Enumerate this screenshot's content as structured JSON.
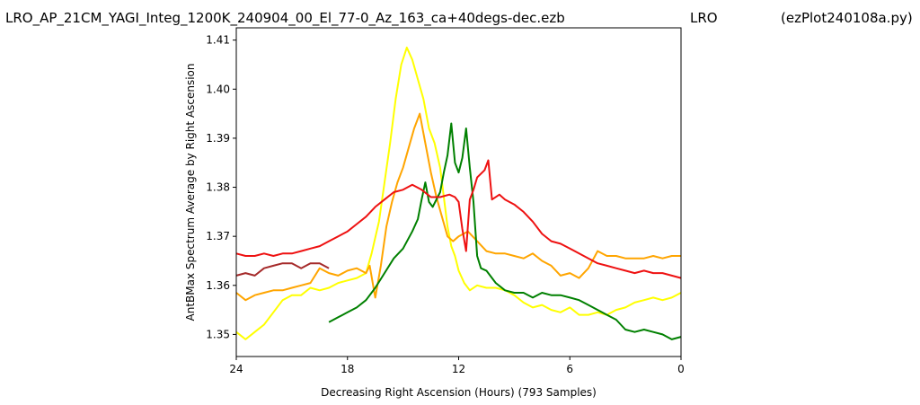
{
  "header": {
    "file_title": "LRO_AP_21CM_YAGI_Integ_1200K_240904_00_El_77-0_Az_163_ca+40degs-dec.ezb",
    "site": "LRO",
    "program": "(ezPlot240108a.py)"
  },
  "chart_data": {
    "type": "line",
    "xlabel": "Decreasing Right Ascension (Hours) (793 Samples)",
    "ylabel": "AntBMax Spectrum Average by Right Ascension",
    "xlim": [
      24,
      0
    ],
    "ylim": [
      1.3455,
      1.4125
    ],
    "x_ticks": [
      24,
      18,
      12,
      6,
      0
    ],
    "y_ticks": [
      1.35,
      1.36,
      1.37,
      1.38,
      1.39,
      1.4,
      1.41
    ],
    "y_tick_labels": [
      "1.35",
      "1.36",
      "1.37",
      "1.38",
      "1.39",
      "1.40",
      "1.41"
    ],
    "grid": false,
    "series": [
      {
        "color": "#ffff00",
        "points": [
          [
            24,
            1.3505
          ],
          [
            23.5,
            1.349
          ],
          [
            23,
            1.3505
          ],
          [
            22.5,
            1.352
          ],
          [
            22,
            1.3545
          ],
          [
            21.5,
            1.357
          ],
          [
            21,
            1.358
          ],
          [
            20.5,
            1.358
          ],
          [
            20,
            1.3595
          ],
          [
            19.5,
            1.359
          ],
          [
            19,
            1.3595
          ],
          [
            18.5,
            1.3605
          ],
          [
            18,
            1.361
          ],
          [
            17.5,
            1.3615
          ],
          [
            17,
            1.3625
          ],
          [
            16.7,
            1.3665
          ],
          [
            16.3,
            1.373
          ],
          [
            16,
            1.381
          ],
          [
            15.7,
            1.389
          ],
          [
            15.4,
            1.398
          ],
          [
            15.1,
            1.405
          ],
          [
            14.8,
            1.4085
          ],
          [
            14.5,
            1.406
          ],
          [
            14.2,
            1.402
          ],
          [
            13.9,
            1.398
          ],
          [
            13.6,
            1.392
          ],
          [
            13.3,
            1.389
          ],
          [
            13,
            1.384
          ],
          [
            12.8,
            1.378
          ],
          [
            12.6,
            1.372
          ],
          [
            12.4,
            1.368
          ],
          [
            12.2,
            1.366
          ],
          [
            12,
            1.363
          ],
          [
            11.7,
            1.3605
          ],
          [
            11.4,
            1.359
          ],
          [
            11,
            1.36
          ],
          [
            10.5,
            1.3595
          ],
          [
            10,
            1.3595
          ],
          [
            9.5,
            1.359
          ],
          [
            9,
            1.358
          ],
          [
            8.5,
            1.3565
          ],
          [
            8,
            1.3555
          ],
          [
            7.5,
            1.356
          ],
          [
            7,
            1.355
          ],
          [
            6.5,
            1.3545
          ],
          [
            6,
            1.3555
          ],
          [
            5.5,
            1.354
          ],
          [
            5,
            1.354
          ],
          [
            4.5,
            1.3545
          ],
          [
            4,
            1.354
          ],
          [
            3.5,
            1.355
          ],
          [
            3,
            1.3555
          ],
          [
            2.5,
            1.3565
          ],
          [
            2,
            1.357
          ],
          [
            1.5,
            1.3575
          ],
          [
            1,
            1.357
          ],
          [
            0.5,
            1.3575
          ],
          [
            0,
            1.3585
          ]
        ]
      },
      {
        "color": "#ffa500",
        "points": [
          [
            24,
            1.3585
          ],
          [
            23.5,
            1.357
          ],
          [
            23,
            1.358
          ],
          [
            22.5,
            1.3585
          ],
          [
            22,
            1.359
          ],
          [
            21.5,
            1.359
          ],
          [
            21,
            1.3595
          ],
          [
            20.5,
            1.36
          ],
          [
            20,
            1.3605
          ],
          [
            19.5,
            1.3635
          ],
          [
            19,
            1.3625
          ],
          [
            18.5,
            1.362
          ],
          [
            18,
            1.363
          ],
          [
            17.5,
            1.3635
          ],
          [
            17,
            1.3625
          ],
          [
            16.8,
            1.364
          ],
          [
            16.5,
            1.3575
          ],
          [
            16.2,
            1.364
          ],
          [
            15.9,
            1.372
          ],
          [
            15.6,
            1.377
          ],
          [
            15.3,
            1.381
          ],
          [
            15,
            1.384
          ],
          [
            14.7,
            1.388
          ],
          [
            14.4,
            1.392
          ],
          [
            14.1,
            1.395
          ],
          [
            13.8,
            1.389
          ],
          [
            13.5,
            1.383
          ],
          [
            13.2,
            1.378
          ],
          [
            12.9,
            1.374
          ],
          [
            12.6,
            1.37
          ],
          [
            12.3,
            1.369
          ],
          [
            12,
            1.37
          ],
          [
            11.5,
            1.371
          ],
          [
            11,
            1.369
          ],
          [
            10.5,
            1.367
          ],
          [
            10,
            1.3665
          ],
          [
            9.5,
            1.3665
          ],
          [
            9,
            1.366
          ],
          [
            8.5,
            1.3655
          ],
          [
            8,
            1.3665
          ],
          [
            7.5,
            1.365
          ],
          [
            7,
            1.364
          ],
          [
            6.5,
            1.362
          ],
          [
            6,
            1.3625
          ],
          [
            5.5,
            1.3615
          ],
          [
            5,
            1.3635
          ],
          [
            4.5,
            1.367
          ],
          [
            4,
            1.366
          ],
          [
            3.5,
            1.366
          ],
          [
            3,
            1.3655
          ],
          [
            2.5,
            1.3655
          ],
          [
            2,
            1.3655
          ],
          [
            1.5,
            1.366
          ],
          [
            1,
            1.3655
          ],
          [
            0.5,
            1.366
          ],
          [
            0,
            1.366
          ]
        ]
      },
      {
        "color": "#a52a2a",
        "points": [
          [
            24,
            1.362
          ],
          [
            23.5,
            1.3625
          ],
          [
            23,
            1.362
          ],
          [
            22.5,
            1.3635
          ],
          [
            22,
            1.364
          ],
          [
            21.5,
            1.3645
          ],
          [
            21,
            1.3645
          ],
          [
            20.5,
            1.3635
          ],
          [
            20,
            1.3645
          ],
          [
            19.5,
            1.3645
          ],
          [
            19,
            1.3635
          ]
        ]
      },
      {
        "color": "#008000",
        "points": [
          [
            19,
            1.3525
          ],
          [
            18.5,
            1.3535
          ],
          [
            18,
            1.3545
          ],
          [
            17.5,
            1.3555
          ],
          [
            17,
            1.357
          ],
          [
            16.5,
            1.3595
          ],
          [
            16,
            1.3625
          ],
          [
            15.5,
            1.3655
          ],
          [
            15,
            1.3675
          ],
          [
            14.5,
            1.371
          ],
          [
            14.2,
            1.3735
          ],
          [
            14,
            1.3775
          ],
          [
            13.8,
            1.381
          ],
          [
            13.6,
            1.377
          ],
          [
            13.4,
            1.376
          ],
          [
            13,
            1.379
          ],
          [
            12.8,
            1.383
          ],
          [
            12.6,
            1.3865
          ],
          [
            12.4,
            1.393
          ],
          [
            12.2,
            1.385
          ],
          [
            12,
            1.383
          ],
          [
            11.8,
            1.386
          ],
          [
            11.6,
            1.392
          ],
          [
            11.4,
            1.384
          ],
          [
            11.2,
            1.377
          ],
          [
            11,
            1.366
          ],
          [
            10.8,
            1.3635
          ],
          [
            10.5,
            1.363
          ],
          [
            10,
            1.3605
          ],
          [
            9.5,
            1.359
          ],
          [
            9,
            1.3585
          ],
          [
            8.5,
            1.3585
          ],
          [
            8,
            1.3575
          ],
          [
            7.5,
            1.3585
          ],
          [
            7,
            1.358
          ],
          [
            6.5,
            1.358
          ],
          [
            6,
            1.3575
          ],
          [
            5.5,
            1.357
          ],
          [
            5,
            1.356
          ],
          [
            4.5,
            1.355
          ],
          [
            4,
            1.354
          ],
          [
            3.5,
            1.353
          ],
          [
            3,
            1.351
          ],
          [
            2.5,
            1.3505
          ],
          [
            2,
            1.351
          ],
          [
            1.5,
            1.3505
          ],
          [
            1,
            1.35
          ],
          [
            0.5,
            1.349
          ],
          [
            0,
            1.3495
          ]
        ]
      },
      {
        "color": "#ee1111",
        "points": [
          [
            24,
            1.3665
          ],
          [
            23.5,
            1.366
          ],
          [
            23,
            1.366
          ],
          [
            22.5,
            1.3665
          ],
          [
            22,
            1.366
          ],
          [
            21.5,
            1.3665
          ],
          [
            21,
            1.3665
          ],
          [
            20.5,
            1.367
          ],
          [
            20,
            1.3675
          ],
          [
            19.5,
            1.368
          ],
          [
            19,
            1.369
          ],
          [
            18.5,
            1.37
          ],
          [
            18,
            1.371
          ],
          [
            17.5,
            1.3725
          ],
          [
            17,
            1.374
          ],
          [
            16.5,
            1.376
          ],
          [
            16,
            1.3775
          ],
          [
            15.5,
            1.379
          ],
          [
            15,
            1.3795
          ],
          [
            14.5,
            1.3805
          ],
          [
            14,
            1.3795
          ],
          [
            13.5,
            1.378
          ],
          [
            13,
            1.378
          ],
          [
            12.5,
            1.3785
          ],
          [
            12.2,
            1.378
          ],
          [
            12,
            1.377
          ],
          [
            11.8,
            1.3715
          ],
          [
            11.6,
            1.367
          ],
          [
            11.4,
            1.3775
          ],
          [
            11.2,
            1.3795
          ],
          [
            11,
            1.382
          ],
          [
            10.6,
            1.3835
          ],
          [
            10.4,
            1.3855
          ],
          [
            10.2,
            1.3775
          ],
          [
            9.8,
            1.3785
          ],
          [
            9.5,
            1.3775
          ],
          [
            9,
            1.3765
          ],
          [
            8.5,
            1.375
          ],
          [
            8,
            1.373
          ],
          [
            7.5,
            1.3705
          ],
          [
            7,
            1.369
          ],
          [
            6.5,
            1.3685
          ],
          [
            6,
            1.3675
          ],
          [
            5.5,
            1.3665
          ],
          [
            5,
            1.3655
          ],
          [
            4.5,
            1.3645
          ],
          [
            4,
            1.364
          ],
          [
            3.5,
            1.3635
          ],
          [
            3,
            1.363
          ],
          [
            2.5,
            1.3625
          ],
          [
            2,
            1.363
          ],
          [
            1.5,
            1.3625
          ],
          [
            1,
            1.3625
          ],
          [
            0.5,
            1.362
          ],
          [
            0,
            1.3615
          ]
        ]
      }
    ]
  }
}
